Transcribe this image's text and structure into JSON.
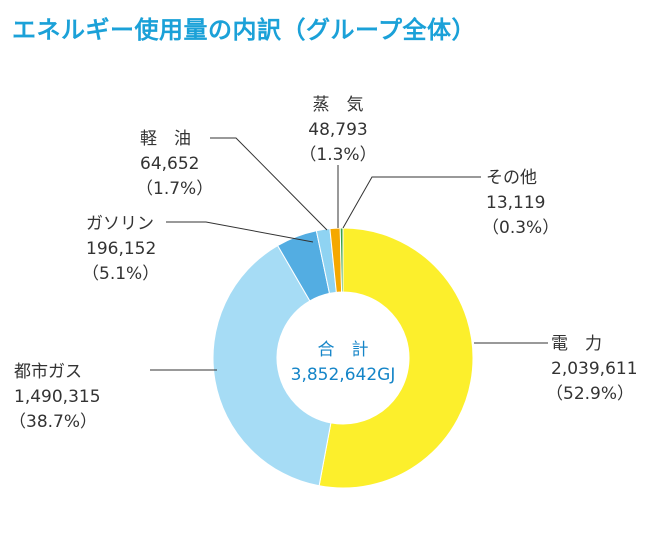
{
  "title": "エネルギー使用量の内訳（グループ全体）",
  "chart_data": {
    "type": "pie",
    "donut": true,
    "title": "エネルギー使用量の内訳（グループ全体）",
    "center_label": "合　計",
    "center_value": "3,852,642GJ",
    "series": [
      {
        "name": "電　力",
        "value": 2039611,
        "value_label": "2,039,611",
        "percent_label": "（52.9%）",
        "color": "#fcef2c"
      },
      {
        "name": "都市ガス",
        "value": 1490315,
        "value_label": "1,490,315",
        "percent_label": "（38.7%）",
        "color": "#a6dcf5"
      },
      {
        "name": "ガソリン",
        "value": 196152,
        "value_label": "196,152",
        "percent_label": "（5.1%）",
        "color": "#53ade2"
      },
      {
        "name": "軽　油",
        "value": 64652,
        "value_label": "64,652",
        "percent_label": "（1.7%）",
        "color": "#8fd3f2"
      },
      {
        "name": "蒸　気",
        "value": 48793,
        "value_label": "48,793",
        "percent_label": "（1.3%）",
        "color": "#f5a800"
      },
      {
        "name": "その他",
        "value": 13119,
        "value_label": "13,119",
        "percent_label": "（0.3%）",
        "color": "#3aa34a"
      }
    ]
  }
}
